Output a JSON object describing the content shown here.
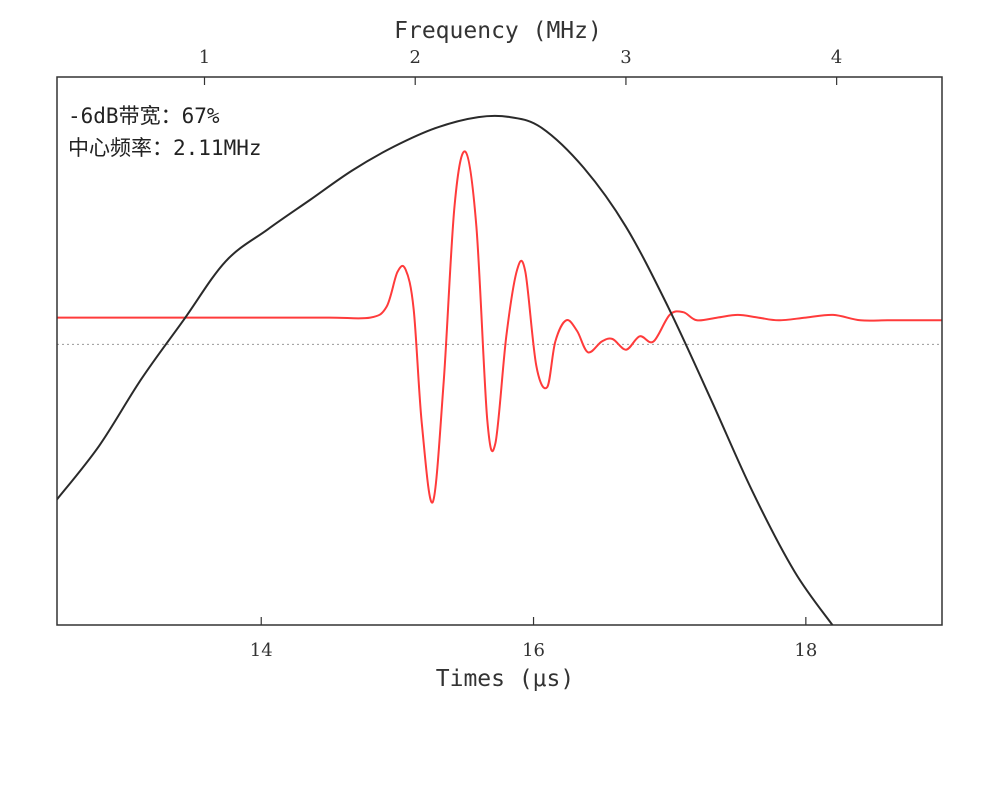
{
  "chart_data": {
    "type": "line",
    "title": "",
    "annotations": [
      "-6dB带宽：67%",
      "中心频率：2.11MHz"
    ],
    "x_bottom": {
      "label": "Times (μs)",
      "lim": [
        12.5,
        19.0
      ],
      "ticks": [
        14,
        16,
        18
      ],
      "tick_labels": [
        "14",
        "16",
        "18"
      ]
    },
    "x_top": {
      "label": "Frequency (MHz)",
      "lim": [
        0.3,
        4.5
      ],
      "ticks": [
        1,
        2,
        3,
        4
      ],
      "tick_labels": [
        "1",
        "2",
        "3",
        "4"
      ]
    },
    "y": {
      "label": "",
      "lim": [
        -1.05,
        1.0
      ],
      "ticks_shown": false,
      "reference_line": 0.0,
      "reference_line_style": "dotted"
    },
    "grid": false,
    "legend": "none",
    "series": [
      {
        "axis": "time",
        "color": "#ff3b3b",
        "x": [
          12.5,
          13.0,
          13.5,
          14.0,
          14.5,
          14.8,
          14.92,
          15.0,
          15.06,
          15.12,
          15.18,
          15.26,
          15.34,
          15.42,
          15.5,
          15.58,
          15.66,
          15.72,
          15.8,
          15.88,
          15.94,
          16.02,
          16.1,
          16.16,
          16.24,
          16.32,
          16.4,
          16.5,
          16.58,
          16.68,
          16.78,
          16.88,
          17.0,
          17.1,
          17.2,
          17.35,
          17.5,
          17.65,
          17.8,
          18.0,
          18.2,
          18.4,
          18.6,
          18.8,
          19.0
        ],
        "y": [
          0.1,
          0.1,
          0.1,
          0.1,
          0.1,
          0.1,
          0.14,
          0.27,
          0.28,
          0.13,
          -0.3,
          -0.59,
          -0.14,
          0.52,
          0.72,
          0.44,
          -0.28,
          -0.37,
          0.03,
          0.28,
          0.27,
          -0.08,
          -0.16,
          0.01,
          0.09,
          0.05,
          -0.03,
          0.01,
          0.02,
          -0.02,
          0.03,
          0.01,
          0.11,
          0.12,
          0.09,
          0.1,
          0.11,
          0.1,
          0.09,
          0.1,
          0.11,
          0.09,
          0.09,
          0.09,
          0.09
        ]
      },
      {
        "axis": "frequency",
        "color": "#2a2a2a",
        "x": [
          0.3,
          0.5,
          0.7,
          0.9,
          1.1,
          1.3,
          1.5,
          1.7,
          1.9,
          2.1,
          2.3,
          2.45,
          2.6,
          2.8,
          3.0,
          3.2,
          3.4,
          3.6,
          3.8,
          3.98
        ],
        "y": [
          -0.58,
          -0.38,
          -0.13,
          0.09,
          0.31,
          0.43,
          0.54,
          0.65,
          0.74,
          0.81,
          0.85,
          0.85,
          0.81,
          0.66,
          0.44,
          0.14,
          -0.2,
          -0.55,
          -0.85,
          -1.05
        ]
      }
    ]
  }
}
